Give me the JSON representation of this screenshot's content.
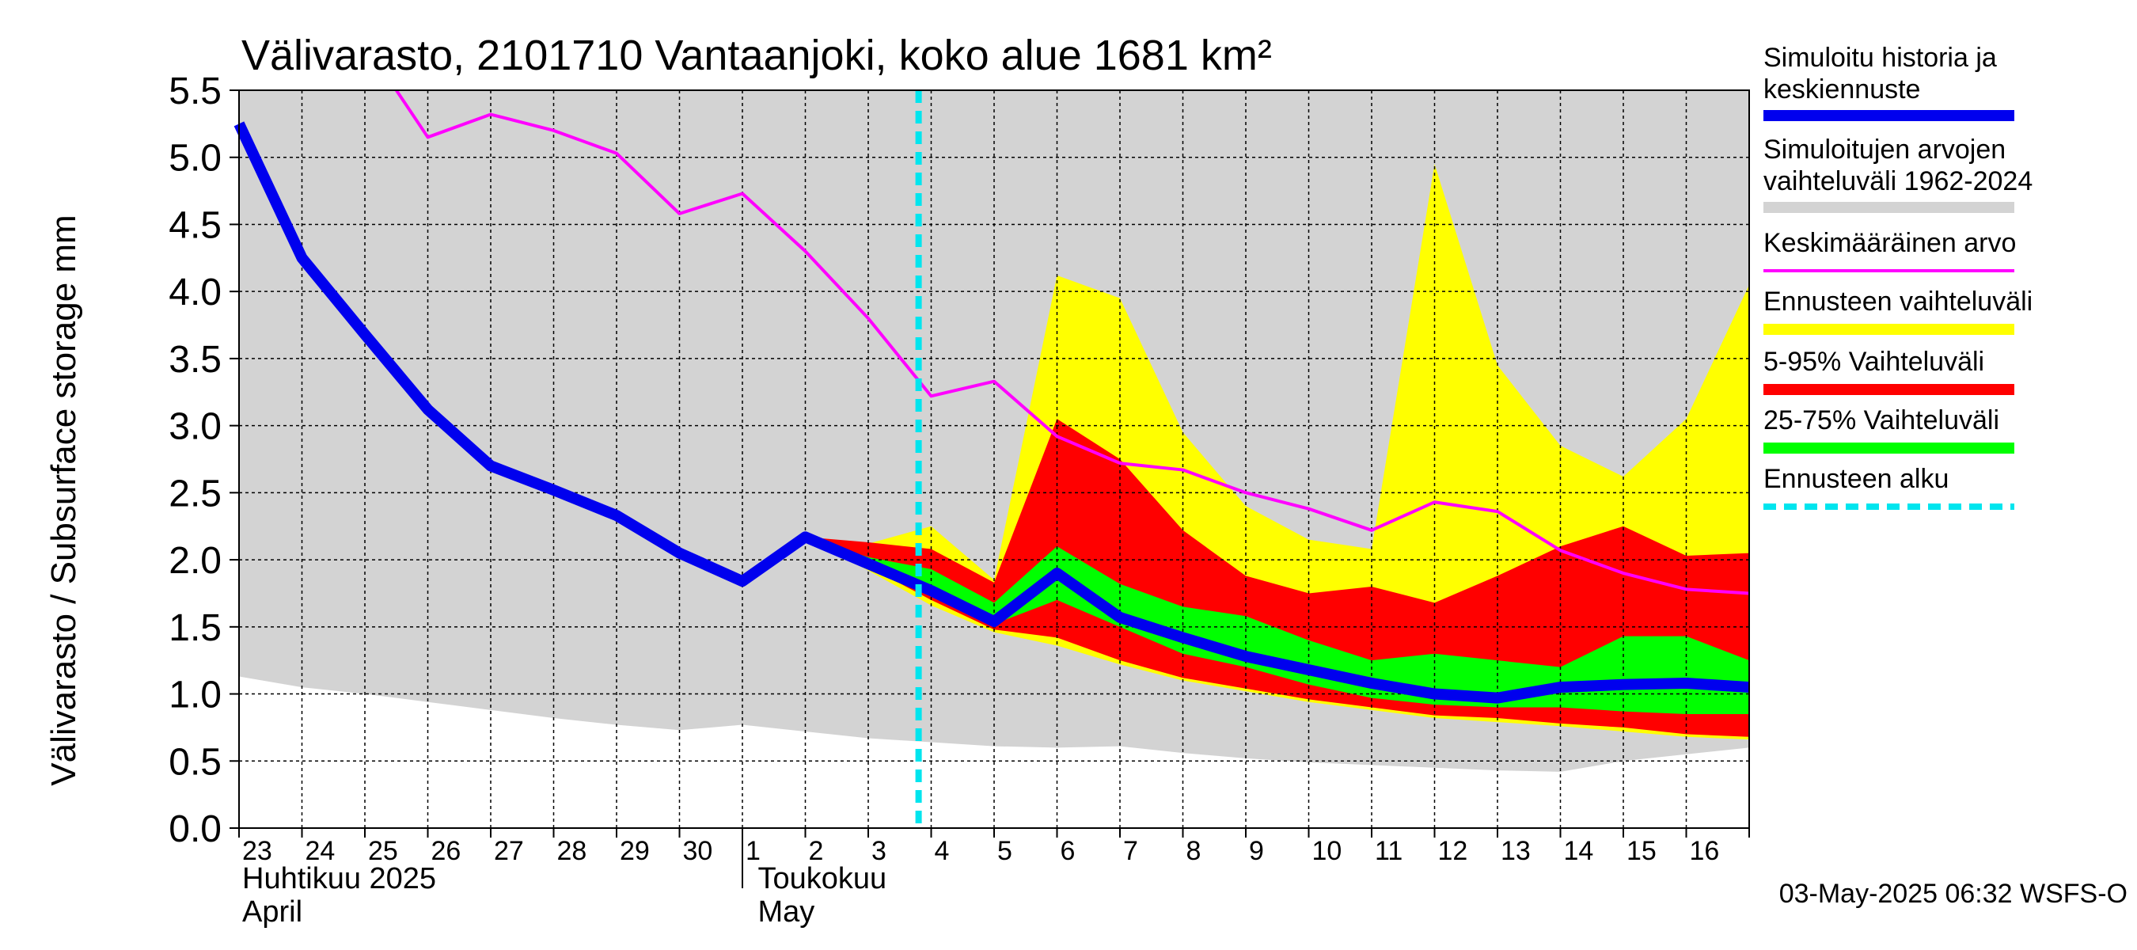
{
  "chart_data": {
    "type": "area",
    "title": "Välivarasto, 2101710 Vantaanjoki, koko alue 1681 km²",
    "ylabel": "Välivarasto / Subsurface storage  mm",
    "ylim": [
      0,
      5.5
    ],
    "yticks": [
      "0.0",
      "0.5",
      "1.0",
      "1.5",
      "2.0",
      "2.5",
      "3.0",
      "3.5",
      "4.0",
      "4.5",
      "5.0",
      "5.5"
    ],
    "x_tick_labels": [
      "23",
      "24",
      "25",
      "26",
      "27",
      "28",
      "29",
      "30",
      "1",
      "2",
      "3",
      "4",
      "5",
      "6",
      "7",
      "8",
      "9",
      "10",
      "11",
      "12",
      "13",
      "14",
      "15",
      "16"
    ],
    "month_labels": [
      {
        "line1": "Huhtikuu  2025",
        "line2": "April"
      },
      {
        "line1": "Toukokuu",
        "line2": "May"
      }
    ],
    "grid": true,
    "legend_position": "right",
    "forecast_start_day": 10.8,
    "series": [
      {
        "name": "Simuloitujen arvojen vaihteluväli 1962-2024",
        "color": "#d3d3d3",
        "x": [
          0,
          1,
          2,
          3,
          4,
          5,
          6,
          7,
          8,
          9,
          10,
          11,
          12,
          13,
          14,
          15,
          16,
          17,
          18,
          19,
          20,
          21,
          22,
          23,
          24
        ],
        "upper": [
          5.5,
          5.5,
          5.5,
          5.5,
          5.5,
          5.5,
          5.5,
          5.5,
          5.5,
          5.5,
          5.5,
          5.5,
          5.5,
          5.5,
          5.5,
          5.5,
          5.5,
          5.5,
          5.5,
          5.5,
          5.5,
          5.5,
          5.5,
          5.5,
          5.5
        ],
        "lower": [
          1.13,
          1.05,
          1.0,
          0.94,
          0.88,
          0.82,
          0.77,
          0.73,
          0.77,
          0.72,
          0.67,
          0.64,
          0.61,
          0.6,
          0.61,
          0.56,
          0.52,
          0.49,
          0.47,
          0.45,
          0.43,
          0.42,
          0.5,
          0.55,
          0.6
        ]
      },
      {
        "name": "Ennusteen vaihteluväli",
        "color": "#ffff00",
        "x": [
          9,
          10,
          11,
          12,
          13,
          14,
          15,
          16,
          17,
          18,
          19,
          20,
          21,
          22,
          23,
          24
        ],
        "upper": [
          2.17,
          2.12,
          2.25,
          1.85,
          4.12,
          3.95,
          2.95,
          2.4,
          2.15,
          2.08,
          4.95,
          3.45,
          2.85,
          2.62,
          3.05,
          4.05
        ],
        "lower": [
          2.17,
          1.92,
          1.66,
          1.46,
          1.36,
          1.22,
          1.1,
          1.02,
          0.94,
          0.88,
          0.82,
          0.79,
          0.76,
          0.72,
          0.68,
          0.66
        ]
      },
      {
        "name": "5-95% Vaihteluväli",
        "color": "#ff0000",
        "x": [
          9,
          10,
          11,
          12,
          13,
          14,
          15,
          16,
          17,
          18,
          19,
          20,
          21,
          22,
          23,
          24
        ],
        "upper": [
          2.17,
          2.13,
          2.08,
          1.83,
          3.05,
          2.75,
          2.22,
          1.88,
          1.75,
          1.8,
          1.68,
          1.88,
          2.1,
          2.25,
          2.03,
          2.05
        ],
        "lower": [
          2.17,
          1.95,
          1.7,
          1.48,
          1.42,
          1.25,
          1.12,
          1.04,
          0.96,
          0.9,
          0.84,
          0.82,
          0.78,
          0.75,
          0.7,
          0.68
        ]
      },
      {
        "name": "25-75% Vaihteluväli",
        "color": "#00ff00",
        "x": [
          9,
          10,
          11,
          12,
          13,
          14,
          15,
          16,
          17,
          18,
          19,
          20,
          21,
          22,
          23,
          24
        ],
        "upper": [
          2.17,
          2.02,
          1.93,
          1.68,
          2.1,
          1.82,
          1.65,
          1.58,
          1.4,
          1.25,
          1.3,
          1.25,
          1.2,
          1.43,
          1.43,
          1.25
        ],
        "lower": [
          2.17,
          1.98,
          1.74,
          1.52,
          1.7,
          1.5,
          1.3,
          1.2,
          1.07,
          0.97,
          0.92,
          0.9,
          0.9,
          0.87,
          0.85,
          0.85
        ]
      },
      {
        "name": "Keskimääräinen arvo",
        "color": "#ff00ff",
        "x": [
          2.5,
          3,
          4,
          5,
          6,
          7,
          8,
          9,
          10,
          11,
          12,
          13,
          14,
          15,
          16,
          17,
          18,
          19,
          20,
          21,
          22,
          23,
          24
        ],
        "values": [
          5.5,
          5.15,
          5.32,
          5.2,
          5.03,
          4.58,
          4.73,
          4.3,
          3.8,
          3.22,
          3.33,
          2.92,
          2.72,
          2.67,
          2.5,
          2.38,
          2.22,
          2.43,
          2.36,
          2.07,
          1.9,
          1.78,
          1.75
        ]
      },
      {
        "name": "Simuloitu historia ja keskiennuste",
        "color": "#0000ee",
        "x": [
          0,
          1,
          2,
          3,
          4,
          5,
          6,
          7,
          8,
          9,
          10,
          11,
          12,
          13,
          14,
          15,
          16,
          17,
          18,
          19,
          20,
          21,
          22,
          23,
          24
        ],
        "values": [
          5.25,
          4.25,
          3.68,
          3.12,
          2.7,
          2.52,
          2.33,
          2.05,
          1.84,
          2.17,
          1.97,
          1.77,
          1.54,
          1.9,
          1.57,
          1.42,
          1.28,
          1.18,
          1.08,
          1.0,
          0.97,
          1.05,
          1.07,
          1.08,
          1.05
        ]
      }
    ],
    "legend": [
      {
        "line1": "Simuloitu historia ja",
        "line2": "keskiennuste",
        "color": "#0000ee",
        "style": "thick"
      },
      {
        "line1": "Simuloitujen arvojen",
        "line2": "vaihteluväli 1962-2024",
        "color": "#d3d3d3",
        "style": "thick"
      },
      {
        "line1": "Keskimääräinen arvo",
        "line2": "",
        "color": "#ff00ff",
        "style": "thin"
      },
      {
        "line1": "Ennusteen vaihteluväli",
        "line2": "",
        "color": "#ffff00",
        "style": "thick"
      },
      {
        "line1": "5-95% Vaihteluväli",
        "line2": "",
        "color": "#ff0000",
        "style": "thick"
      },
      {
        "line1": "25-75% Vaihteluväli",
        "line2": "",
        "color": "#00ff00",
        "style": "thick"
      },
      {
        "line1": "Ennusteen alku",
        "line2": "",
        "color": "#00e5ee",
        "style": "dashed"
      }
    ],
    "footer": "03-May-2025 06:32 WSFS-O"
  }
}
